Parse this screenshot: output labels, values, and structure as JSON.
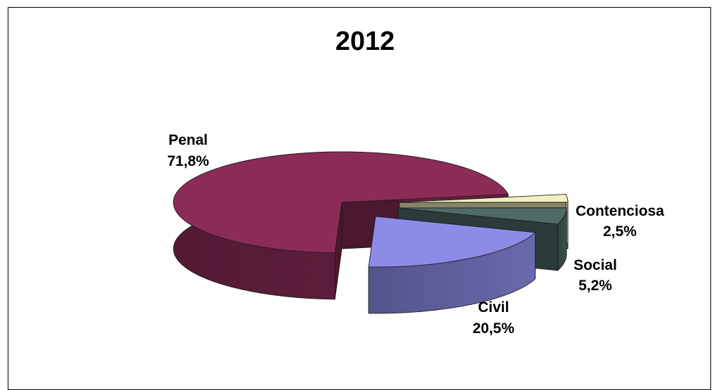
{
  "chart_data": {
    "type": "pie",
    "title": "2012",
    "slices": [
      {
        "label": "Penal",
        "value": 71.8,
        "display": "71,8%",
        "color": "#8A2C56"
      },
      {
        "label": "Civil",
        "value": 20.5,
        "display": "20,5%",
        "color": "#8C8CE8"
      },
      {
        "label": "Social",
        "value": 5.2,
        "display": "5,2%",
        "color": "#4E6B68"
      },
      {
        "label": "Contenciosa",
        "value": 2.5,
        "display": "2,5%",
        "color": "#F2F0C0"
      }
    ],
    "style": "3d-exploded",
    "legend": "none"
  }
}
